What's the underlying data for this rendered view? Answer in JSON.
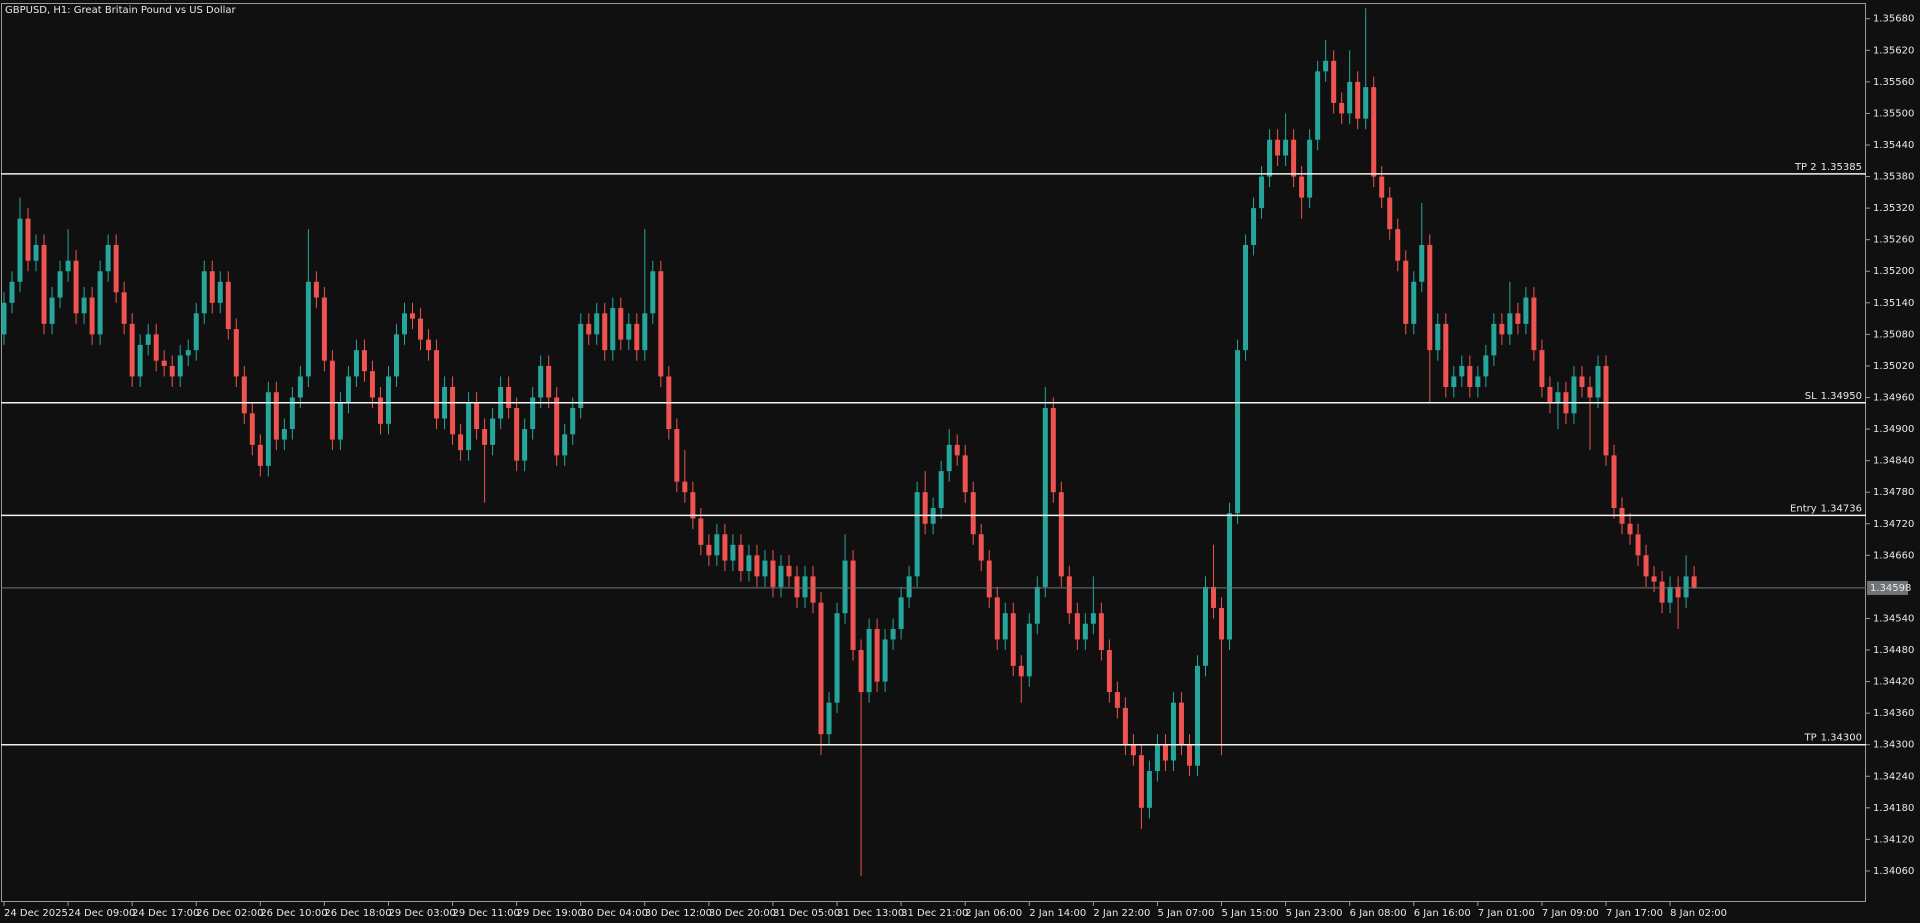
{
  "chart_data": {
    "type": "candlestick",
    "title": "GBPUSD, H1:  Great Britain Pound vs US Dollar",
    "up_color": "#26a69a",
    "down_color": "#ef5350",
    "categories": [
      "24 Dec 2025",
      null,
      null,
      null,
      null,
      null,
      null,
      null,
      "24 Dec 09:00",
      null,
      null,
      null,
      null,
      null,
      null,
      null,
      "24 Dec 17:00",
      null,
      null,
      null,
      null,
      null,
      null,
      null,
      "26 Dec 02:00",
      null,
      null,
      null,
      null,
      null,
      null,
      null,
      "26 Dec 10:00",
      null,
      null,
      null,
      null,
      null,
      null,
      null,
      "26 Dec 18:00",
      null,
      null,
      null,
      null,
      null,
      null,
      null,
      "29 Dec 03:00",
      null,
      null,
      null,
      null,
      null,
      null,
      null,
      "29 Dec 11:00",
      null,
      null,
      null,
      null,
      null,
      null,
      null,
      "29 Dec 19:00",
      null,
      null,
      null,
      null,
      null,
      null,
      null,
      "30 Dec 04:00",
      null,
      null,
      null,
      null,
      null,
      null,
      null,
      "30 Dec 12:00",
      null,
      null,
      null,
      null,
      null,
      null,
      null,
      "30 Dec 20:00",
      null,
      null,
      null,
      null,
      null,
      null,
      null,
      "31 Dec 05:00",
      null,
      null,
      null,
      null,
      null,
      null,
      null,
      "31 Dec 13:00",
      null,
      null,
      null,
      null,
      null,
      null,
      null,
      "31 Dec 21:00",
      null,
      null,
      null,
      null,
      null,
      null,
      null,
      "2 Jan 06:00",
      null,
      null,
      null,
      null,
      null,
      null,
      null,
      "2 Jan 14:00",
      null,
      null,
      null,
      null,
      null,
      null,
      null,
      "2 Jan 22:00",
      null,
      null,
      null,
      null,
      null,
      null,
      null,
      "5 Jan 07:00",
      null,
      null,
      null,
      null,
      null,
      null,
      null,
      "5 Jan 15:00",
      null,
      null,
      null,
      null,
      null,
      null,
      null,
      "5 Jan 23:00",
      null,
      null,
      null,
      null,
      null,
      null,
      null,
      "6 Jan 08:00",
      null,
      null,
      null,
      null,
      null,
      null,
      null,
      "6 Jan 16:00",
      null,
      null,
      null,
      null,
      null,
      null,
      null,
      "7 Jan 01:00",
      null,
      null,
      null,
      null,
      null,
      null,
      null,
      "7 Jan 09:00",
      null,
      null,
      null,
      null,
      null,
      null,
      null,
      "7 Jan 17:00",
      null,
      null,
      null,
      null,
      null,
      null,
      null,
      "8 Jan 02:00",
      null,
      null,
      null
    ],
    "open": [
      1.3508,
      1.3514,
      1.3518,
      1.353,
      1.3522,
      1.3525,
      1.351,
      1.3515,
      1.352,
      1.3522,
      1.3512,
      1.3515,
      1.3508,
      1.352,
      1.3525,
      1.3516,
      1.351,
      1.35,
      1.3506,
      1.3508,
      1.3503,
      1.3502,
      1.35,
      1.3504,
      1.3505,
      1.3512,
      1.352,
      1.3514,
      1.3518,
      1.3509,
      1.35,
      1.3493,
      1.3487,
      1.3483,
      1.3497,
      1.3488,
      1.349,
      1.3496,
      1.35,
      1.3518,
      1.3515,
      1.3503,
      1.3488,
      1.3495,
      1.35,
      1.3505,
      1.3501,
      1.3496,
      1.3491,
      1.35,
      1.3508,
      1.3512,
      1.3511,
      1.3507,
      1.3505,
      1.3492,
      1.3498,
      1.3489,
      1.3486,
      1.3495,
      1.349,
      1.3487,
      1.3492,
      1.3498,
      1.3494,
      1.3484,
      1.349,
      1.3496,
      1.3502,
      1.3496,
      1.3485,
      1.3489,
      1.3494,
      1.351,
      1.3508,
      1.3512,
      1.3505,
      1.3513,
      1.3507,
      1.351,
      1.3505,
      1.3512,
      1.352,
      1.35,
      1.349,
      1.348,
      1.3478,
      1.3473,
      1.3468,
      1.3466,
      1.347,
      1.3465,
      1.3468,
      1.3463,
      1.3466,
      1.3462,
      1.3465,
      1.346,
      1.3464,
      1.3462,
      1.3458,
      1.3462,
      1.3457,
      1.3432,
      1.3438,
      1.3455,
      1.3465,
      1.3448,
      1.344,
      1.3452,
      1.3442,
      1.345,
      1.3452,
      1.3458,
      1.3462,
      1.3478,
      1.3472,
      1.3475,
      1.3482,
      1.3487,
      1.3485,
      1.3478,
      1.347,
      1.3465,
      1.3458,
      1.345,
      1.3455,
      1.3445,
      1.3443,
      1.3453,
      1.346,
      1.3494,
      1.3478,
      1.3462,
      1.3455,
      1.345,
      1.3453,
      1.3455,
      1.3448,
      1.344,
      1.3437,
      1.343,
      1.3428,
      1.3418,
      1.3425,
      1.343,
      1.3427,
      1.3438,
      1.343,
      1.3426,
      1.3445,
      1.346,
      1.3456,
      1.345,
      1.3474,
      1.3505,
      1.3525,
      1.3532,
      1.3538,
      1.3545,
      1.3542,
      1.3545,
      1.3538,
      1.3534,
      1.3545,
      1.3558,
      1.356,
      1.3552,
      1.355,
      1.3556,
      1.3549,
      1.3555,
      1.3538,
      1.3534,
      1.3528,
      1.3522,
      1.351,
      1.3518,
      1.3525,
      1.3505,
      1.351,
      1.3498,
      1.35,
      1.3502,
      1.3498,
      1.35,
      1.3504,
      1.351,
      1.3508,
      1.3512,
      1.351,
      1.3515,
      1.3505,
      1.3498,
      1.3495,
      1.3497,
      1.3493,
      1.35,
      1.3498,
      1.3496,
      1.3502,
      1.3485,
      1.3475,
      1.3472,
      1.347,
      1.3466,
      1.3462,
      1.3461,
      1.3457,
      1.346,
      1.3458,
      1.3462
    ],
    "high": [
      1.3516,
      1.352,
      1.3534,
      1.3532,
      1.3527,
      1.3527,
      1.3517,
      1.3522,
      1.3528,
      1.3524,
      1.3517,
      1.3517,
      1.3522,
      1.3527,
      1.3527,
      1.3518,
      1.3512,
      1.3508,
      1.351,
      1.351,
      1.3505,
      1.3504,
      1.3506,
      1.3507,
      1.3514,
      1.3522,
      1.3522,
      1.352,
      1.352,
      1.3511,
      1.3502,
      1.3495,
      1.3489,
      1.3499,
      1.3499,
      1.3492,
      1.3498,
      1.3502,
      1.3528,
      1.352,
      1.3517,
      1.3505,
      1.3497,
      1.3502,
      1.3507,
      1.3507,
      1.3503,
      1.3498,
      1.3502,
      1.351,
      1.3514,
      1.3514,
      1.3513,
      1.3509,
      1.3507,
      1.35,
      1.35,
      1.3491,
      1.3497,
      1.3497,
      1.3492,
      1.3494,
      1.35,
      1.35,
      1.3496,
      1.3492,
      1.3498,
      1.3504,
      1.3504,
      1.3498,
      1.3491,
      1.3496,
      1.3512,
      1.3512,
      1.3514,
      1.3514,
      1.3515,
      1.3515,
      1.3512,
      1.3512,
      1.3528,
      1.3522,
      1.3522,
      1.3502,
      1.3492,
      1.3486,
      1.348,
      1.3475,
      1.347,
      1.3472,
      1.3472,
      1.347,
      1.347,
      1.3468,
      1.3468,
      1.3467,
      1.3467,
      1.3466,
      1.3466,
      1.3464,
      1.3464,
      1.3464,
      1.3459,
      1.344,
      1.3457,
      1.347,
      1.3467,
      1.345,
      1.3454,
      1.3454,
      1.3452,
      1.3454,
      1.346,
      1.3464,
      1.348,
      1.3482,
      1.3477,
      1.3484,
      1.349,
      1.3489,
      1.3487,
      1.348,
      1.3472,
      1.3467,
      1.346,
      1.3457,
      1.3457,
      1.3447,
      1.3455,
      1.3462,
      1.3498,
      1.3496,
      1.348,
      1.3464,
      1.3457,
      1.3455,
      1.3462,
      1.3457,
      1.345,
      1.3442,
      1.3439,
      1.3432,
      1.343,
      1.3427,
      1.3432,
      1.3432,
      1.344,
      1.344,
      1.3432,
      1.3447,
      1.3462,
      1.3468,
      1.3458,
      1.3476,
      1.3507,
      1.3527,
      1.3534,
      1.354,
      1.3547,
      1.3547,
      1.355,
      1.3547,
      1.354,
      1.3547,
      1.356,
      1.3564,
      1.3562,
      1.3554,
      1.3562,
      1.3558,
      1.357,
      1.3557,
      1.354,
      1.3536,
      1.353,
      1.3524,
      1.352,
      1.3533,
      1.3527,
      1.3512,
      1.3512,
      1.3502,
      1.3504,
      1.3504,
      1.3502,
      1.3506,
      1.3512,
      1.3512,
      1.3518,
      1.3514,
      1.3517,
      1.3517,
      1.3507,
      1.35,
      1.3499,
      1.3499,
      1.3502,
      1.3502,
      1.35,
      1.3504,
      1.3504,
      1.3487,
      1.3477,
      1.3474,
      1.3472,
      1.3468,
      1.3464,
      1.3463,
      1.3462,
      1.3462,
      1.3466,
      1.3464
    ],
    "low": [
      1.3506,
      1.3512,
      1.3516,
      1.352,
      1.352,
      1.3508,
      1.3508,
      1.3513,
      1.3518,
      1.351,
      1.351,
      1.3506,
      1.3506,
      1.3518,
      1.3514,
      1.3508,
      1.3498,
      1.3498,
      1.3504,
      1.3501,
      1.35,
      1.3498,
      1.3498,
      1.3502,
      1.3503,
      1.351,
      1.3512,
      1.3512,
      1.3507,
      1.3498,
      1.3491,
      1.3485,
      1.3481,
      1.3481,
      1.3486,
      1.3486,
      1.3488,
      1.3494,
      1.3498,
      1.3513,
      1.3501,
      1.3486,
      1.3486,
      1.3493,
      1.3498,
      1.3499,
      1.3494,
      1.3489,
      1.3489,
      1.3498,
      1.3506,
      1.3509,
      1.3505,
      1.3503,
      1.349,
      1.349,
      1.3487,
      1.3484,
      1.3484,
      1.3488,
      1.3476,
      1.3485,
      1.349,
      1.3492,
      1.3482,
      1.3482,
      1.3488,
      1.3494,
      1.3494,
      1.3483,
      1.3483,
      1.3487,
      1.3492,
      1.3506,
      1.3506,
      1.3503,
      1.3503,
      1.3505,
      1.3505,
      1.3503,
      1.3503,
      1.351,
      1.3498,
      1.3488,
      1.3478,
      1.3476,
      1.3471,
      1.3466,
      1.3464,
      1.3464,
      1.3463,
      1.3463,
      1.3461,
      1.3461,
      1.346,
      1.346,
      1.3458,
      1.3458,
      1.346,
      1.3456,
      1.3456,
      1.3455,
      1.3428,
      1.343,
      1.3436,
      1.3453,
      1.3446,
      1.3405,
      1.3438,
      1.344,
      1.344,
      1.3448,
      1.345,
      1.3456,
      1.346,
      1.347,
      1.347,
      1.3473,
      1.348,
      1.3483,
      1.3476,
      1.3468,
      1.3463,
      1.3456,
      1.3448,
      1.3448,
      1.3443,
      1.3438,
      1.3441,
      1.3451,
      1.3458,
      1.3476,
      1.346,
      1.3453,
      1.3448,
      1.3448,
      1.3451,
      1.3446,
      1.3438,
      1.3435,
      1.3428,
      1.3426,
      1.3414,
      1.3416,
      1.3423,
      1.3425,
      1.3425,
      1.3428,
      1.3424,
      1.3424,
      1.3443,
      1.3454,
      1.3428,
      1.3448,
      1.3472,
      1.3503,
      1.3523,
      1.353,
      1.3536,
      1.354,
      1.354,
      1.3536,
      1.353,
      1.3532,
      1.3543,
      1.3556,
      1.355,
      1.3548,
      1.3548,
      1.3547,
      1.3547,
      1.3536,
      1.3532,
      1.3526,
      1.352,
      1.3508,
      1.3508,
      1.3516,
      1.3495,
      1.3503,
      1.3496,
      1.3496,
      1.3498,
      1.3496,
      1.3496,
      1.3498,
      1.3502,
      1.3506,
      1.3506,
      1.3508,
      1.3508,
      1.3503,
      1.3496,
      1.3493,
      1.349,
      1.3491,
      1.3491,
      1.3496,
      1.3486,
      1.3494,
      1.3483,
      1.3473,
      1.347,
      1.3468,
      1.3464,
      1.346,
      1.3459,
      1.3455,
      1.3455,
      1.3452,
      1.3456,
      1.34596
    ],
    "close": [
      1.3514,
      1.3518,
      1.353,
      1.3522,
      1.3525,
      1.351,
      1.3515,
      1.352,
      1.3522,
      1.3512,
      1.3515,
      1.3508,
      1.352,
      1.3525,
      1.3516,
      1.351,
      1.35,
      1.3506,
      1.3508,
      1.3503,
      1.3502,
      1.35,
      1.3504,
      1.3505,
      1.3512,
      1.352,
      1.3514,
      1.3518,
      1.3509,
      1.35,
      1.3493,
      1.3487,
      1.3483,
      1.3497,
      1.3488,
      1.349,
      1.3496,
      1.35,
      1.3518,
      1.3515,
      1.3503,
      1.3488,
      1.3495,
      1.35,
      1.3505,
      1.3501,
      1.3496,
      1.3491,
      1.35,
      1.3508,
      1.3512,
      1.3511,
      1.3507,
      1.3505,
      1.3492,
      1.3498,
      1.3489,
      1.3486,
      1.3495,
      1.349,
      1.3487,
      1.3492,
      1.3498,
      1.3494,
      1.3484,
      1.349,
      1.3496,
      1.3502,
      1.3496,
      1.3485,
      1.3489,
      1.3494,
      1.351,
      1.3508,
      1.3512,
      1.3505,
      1.3513,
      1.3507,
      1.351,
      1.3505,
      1.3512,
      1.352,
      1.35,
      1.349,
      1.348,
      1.3478,
      1.3473,
      1.3468,
      1.3466,
      1.347,
      1.3465,
      1.3468,
      1.3463,
      1.3466,
      1.3462,
      1.3465,
      1.346,
      1.3464,
      1.3462,
      1.3458,
      1.3462,
      1.3457,
      1.3432,
      1.3438,
      1.3455,
      1.3465,
      1.3448,
      1.344,
      1.3452,
      1.3442,
      1.345,
      1.3452,
      1.3458,
      1.3462,
      1.3478,
      1.3472,
      1.3475,
      1.3482,
      1.3487,
      1.3485,
      1.3478,
      1.347,
      1.3465,
      1.3458,
      1.345,
      1.3455,
      1.3445,
      1.3443,
      1.3453,
      1.346,
      1.3494,
      1.3478,
      1.3462,
      1.3455,
      1.345,
      1.3453,
      1.3455,
      1.3448,
      1.344,
      1.3437,
      1.343,
      1.3428,
      1.3418,
      1.3425,
      1.343,
      1.3427,
      1.3438,
      1.343,
      1.3426,
      1.3445,
      1.346,
      1.3456,
      1.345,
      1.3474,
      1.3505,
      1.3525,
      1.3532,
      1.3538,
      1.3545,
      1.3542,
      1.3545,
      1.3538,
      1.3534,
      1.3545,
      1.3558,
      1.356,
      1.3552,
      1.355,
      1.3556,
      1.3549,
      1.3555,
      1.3538,
      1.3534,
      1.3528,
      1.3522,
      1.351,
      1.3518,
      1.3525,
      1.3505,
      1.351,
      1.3498,
      1.35,
      1.3502,
      1.3498,
      1.35,
      1.3504,
      1.351,
      1.3508,
      1.3512,
      1.351,
      1.3515,
      1.3505,
      1.3498,
      1.3495,
      1.3497,
      1.3493,
      1.35,
      1.3498,
      1.3496,
      1.3502,
      1.3485,
      1.3475,
      1.3472,
      1.347,
      1.3466,
      1.3462,
      1.3461,
      1.3457,
      1.346,
      1.3458,
      1.3462,
      1.34598
    ],
    "ylim": [
      1.34001,
      1.35708
    ],
    "yticks": [
      {
        "value": 1.3568,
        "label": "1.35680"
      },
      {
        "value": 1.3562,
        "label": "1.35620"
      },
      {
        "value": 1.3556,
        "label": "1.35560"
      },
      {
        "value": 1.355,
        "label": "1.35500"
      },
      {
        "value": 1.3544,
        "label": "1.35440"
      },
      {
        "value": 1.3538,
        "label": "1.35380"
      },
      {
        "value": 1.3532,
        "label": "1.35320"
      },
      {
        "value": 1.3526,
        "label": "1.35260"
      },
      {
        "value": 1.352,
        "label": "1.35200"
      },
      {
        "value": 1.3514,
        "label": "1.35140"
      },
      {
        "value": 1.3508,
        "label": "1.35080"
      },
      {
        "value": 1.3502,
        "label": "1.35020"
      },
      {
        "value": 1.3496,
        "label": "1.34960"
      },
      {
        "value": 1.349,
        "label": "1.34900"
      },
      {
        "value": 1.3484,
        "label": "1.34840"
      },
      {
        "value": 1.3478,
        "label": "1.34780"
      },
      {
        "value": 1.3472,
        "label": "1.34720"
      },
      {
        "value": 1.3466,
        "label": "1.34660"
      },
      {
        "value": 1.3454,
        "label": "1.34540"
      },
      {
        "value": 1.3448,
        "label": "1.34480"
      },
      {
        "value": 1.3442,
        "label": "1.34420"
      },
      {
        "value": 1.3436,
        "label": "1.34360"
      },
      {
        "value": 1.343,
        "label": "1.34300"
      },
      {
        "value": 1.3424,
        "label": "1.34240"
      },
      {
        "value": 1.3418,
        "label": "1.34180"
      },
      {
        "value": 1.3412,
        "label": "1.34120"
      },
      {
        "value": 1.3406,
        "label": "1.34060"
      }
    ],
    "levels": [
      {
        "name": "TP 2",
        "price": 1.35385
      },
      {
        "name": "SL",
        "price": {
          "value": 1.3495,
          "label": "1.34950"
        }
      },
      {
        "name": "Entry",
        "price": 1.34736
      },
      {
        "name": "TP",
        "price": {
          "value": 1.343,
          "label": "1.34300"
        }
      }
    ],
    "bid": 1.34598
  }
}
